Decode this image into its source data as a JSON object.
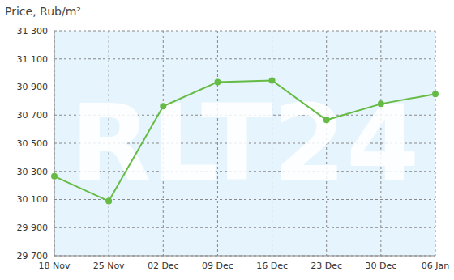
{
  "chart_data": {
    "type": "line",
    "title": "Price, Rub/m²",
    "annotations": [
      "RLT24"
    ],
    "categories": [
      "18 Nov",
      "25 Nov",
      "02 Dec",
      "09 Dec",
      "16 Dec",
      "23 Dec",
      "30 Dec",
      "06 Jan"
    ],
    "series": [
      {
        "name": "Price",
        "color": "#66bb44",
        "marker": "circle",
        "values": [
          30265,
          30088,
          30763,
          30935,
          30946,
          30665,
          30780,
          30850
        ]
      }
    ],
    "ylim": [
      29700,
      31300
    ],
    "yticks": [
      {
        "value": 29700,
        "label": "29 700"
      },
      {
        "value": 29900,
        "label": "29 900"
      },
      {
        "value": 30100,
        "label": "30 100"
      },
      {
        "value": 30300,
        "label": "30 300"
      },
      {
        "value": 30500,
        "label": "30 500"
      },
      {
        "value": 30700,
        "label": "30 700"
      },
      {
        "value": 30900,
        "label": "30 900"
      },
      {
        "value": 31100,
        "label": "31 100"
      },
      {
        "value": 31300,
        "label": "31 300"
      }
    ],
    "grid": true
  }
}
